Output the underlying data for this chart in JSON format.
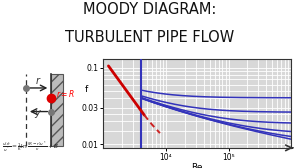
{
  "title_line1": "MOODY DIAGRAM:",
  "title_line2": "TURBULENT PIPE FLOW",
  "title_fontsize": 10.5,
  "title_color": "#111111",
  "background_color": "#ffffff",
  "plot_bg_color": "#d8d8d8",
  "Re_min": 1000,
  "Re_max": 1000000,
  "f_min": 0.009,
  "f_max": 0.13,
  "yticks": [
    0.01,
    0.03,
    0.1
  ],
  "ytick_labels": [
    "0.01",
    "0.03",
    "0.1"
  ],
  "xtick_positions": [
    10000,
    100000
  ],
  "xtick_labels": [
    "10⁴",
    "10⁵"
  ],
  "xlabel": "Re",
  "ylabel": "f",
  "blue_color": "#3333bb",
  "red_color": "#cc0000",
  "red_dashed_color": "#cc2222",
  "roughness_eps": [
    1e-06,
    5e-05,
    0.0002,
    0.0008,
    0.003,
    0.012
  ],
  "pipe_wall_color": "#aaaaaa",
  "pipe_line_color": "#333333",
  "arrow_color": "#222222",
  "dot_gray": "#777777",
  "dot_red": "#dd0000",
  "formula_color": "#222222"
}
